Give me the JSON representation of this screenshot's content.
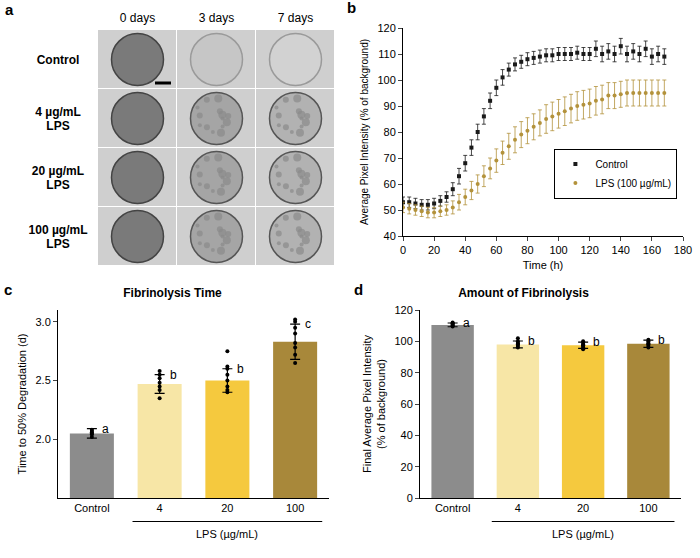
{
  "image_panel": {
    "panel": "a",
    "columns": [
      "0 days",
      "3 days",
      "7 days"
    ],
    "rows": [
      "Control",
      "4 µg/mL LPS",
      "20 µg/mL LPS",
      "100 µg/mL LPS"
    ]
  },
  "chart_data": [
    {
      "panel": "b",
      "type": "scatter",
      "x_label": "Time (h)",
      "y_label": "Average Pixel Intensity (% of background)",
      "x": [
        0,
        4,
        8,
        12,
        16,
        20,
        24,
        28,
        32,
        36,
        40,
        44,
        48,
        52,
        56,
        60,
        64,
        68,
        72,
        76,
        80,
        84,
        88,
        92,
        96,
        100,
        104,
        108,
        112,
        116,
        120,
        124,
        128,
        132,
        136,
        140,
        144,
        148,
        152,
        156,
        160,
        164,
        168
      ],
      "xlim": [
        0,
        180
      ],
      "xticks": [
        0,
        20,
        40,
        60,
        80,
        100,
        120,
        140,
        160,
        180
      ],
      "ylim": [
        40,
        120
      ],
      "yticks": [
        40,
        50,
        60,
        70,
        80,
        90,
        100,
        110,
        120
      ],
      "grid": false,
      "legend": "right",
      "series": [
        {
          "name": "Control",
          "color": "#1a1a1a",
          "marker": "square",
          "values": [
            53,
            53,
            52.5,
            52,
            52,
            52.5,
            53.5,
            55,
            58,
            63,
            68,
            74,
            80,
            86,
            92,
            97,
            101,
            104,
            106,
            107,
            108,
            108.5,
            109,
            109.5,
            109.5,
            110,
            110,
            110,
            110.5,
            110,
            110,
            112,
            110,
            111,
            110,
            113,
            110,
            111,
            110,
            112,
            109,
            110,
            109
          ],
          "errors": [
            2,
            2,
            2,
            2,
            2,
            2,
            2,
            2,
            2.5,
            3,
            3,
            3,
            3,
            3,
            3,
            3,
            3,
            2.5,
            2.5,
            2.5,
            2.5,
            2.5,
            2.5,
            2.5,
            2.5,
            2.5,
            2.5,
            2.5,
            2.5,
            2.5,
            2.5,
            3,
            3,
            3,
            3,
            3,
            3,
            3,
            3,
            3,
            3,
            3,
            3
          ]
        },
        {
          "name": "LPS (100 µg/mL)",
          "color": "#b3923b",
          "marker": "circle",
          "values": [
            51,
            50.5,
            50,
            49.5,
            49,
            49,
            49.5,
            50,
            51,
            53,
            55,
            57.5,
            60,
            63,
            66,
            69,
            72,
            74.5,
            77,
            79,
            80.5,
            82,
            83.5,
            85,
            86,
            87,
            88,
            89,
            90,
            90.5,
            91,
            92,
            92.5,
            94,
            94,
            94.5,
            95,
            95,
            95,
            95,
            95,
            95,
            95
          ],
          "errors": [
            2,
            2,
            2,
            2,
            2,
            2,
            2,
            2,
            2.5,
            3,
            3,
            3.5,
            3.5,
            4,
            4,
            4.5,
            4.5,
            5,
            5,
            5,
            5,
            5,
            5,
            5.5,
            5.5,
            5.5,
            5.5,
            5.5,
            5.5,
            5.5,
            5.5,
            5.5,
            5.5,
            5,
            5,
            5,
            5,
            5,
            5,
            5,
            5,
            5,
            5
          ]
        }
      ]
    },
    {
      "panel": "c",
      "type": "bar",
      "title": "Fibrinolysis Time",
      "x_label": "LPS (µg/mL)",
      "y_label": "Time to 50% Degradation (d)",
      "categories": [
        "Control",
        "4",
        "20",
        "100"
      ],
      "values": [
        2.05,
        2.47,
        2.5,
        2.83
      ],
      "errors": [
        0.04,
        0.08,
        0.1,
        0.15
      ],
      "points": [
        [
          2.02,
          2.04,
          2.05,
          2.06,
          2.07,
          2.08
        ],
        [
          2.35,
          2.42,
          2.45,
          2.48,
          2.52,
          2.55,
          2.58
        ],
        [
          2.4,
          2.42,
          2.45,
          2.5,
          2.55,
          2.6,
          2.62,
          2.75
        ],
        [
          2.65,
          2.72,
          2.78,
          2.82,
          2.9,
          2.95,
          3.0,
          3.02
        ]
      ],
      "annotations": [
        "a",
        "b",
        "b",
        "c"
      ],
      "colors": [
        "#8c8c8c",
        "#f7e6a6",
        "#f5c93e",
        "#a8883a"
      ],
      "ylim": [
        1.5,
        3.1
      ],
      "yticks": [
        {
          "value": 2,
          "label": "2.0"
        },
        {
          "value": 2.5,
          "label": "2.5"
        },
        {
          "value": 3,
          "label": "3.0"
        }
      ],
      "grid": false
    },
    {
      "panel": "d",
      "type": "bar",
      "title": "Amount of Fibrinolysis",
      "x_label": "LPS (µg/mL)",
      "y_label": "Final Average Pixel Intensity (% of background)",
      "categories": [
        "Control",
        "4",
        "20",
        "100"
      ],
      "values": [
        110.5,
        98,
        97.5,
        98.5
      ],
      "errors": [
        1.2,
        2.2,
        2,
        2.3
      ],
      "points": [
        [
          109.5,
          110,
          110.5,
          111,
          111.5,
          112
        ],
        [
          96,
          97,
          98,
          98.5,
          99,
          100,
          102
        ],
        [
          95,
          96,
          97,
          97.5,
          98,
          99,
          100
        ],
        [
          96,
          97,
          98,
          98.5,
          99,
          100,
          101
        ]
      ],
      "annotations": [
        "a",
        "b",
        "b",
        "b"
      ],
      "colors": [
        "#8c8c8c",
        "#f7e6a6",
        "#f5c93e",
        "#a8883a"
      ],
      "ylim": [
        0,
        120
      ],
      "yticks": [
        0,
        20,
        40,
        60,
        80,
        100,
        120
      ],
      "grid": false
    }
  ]
}
